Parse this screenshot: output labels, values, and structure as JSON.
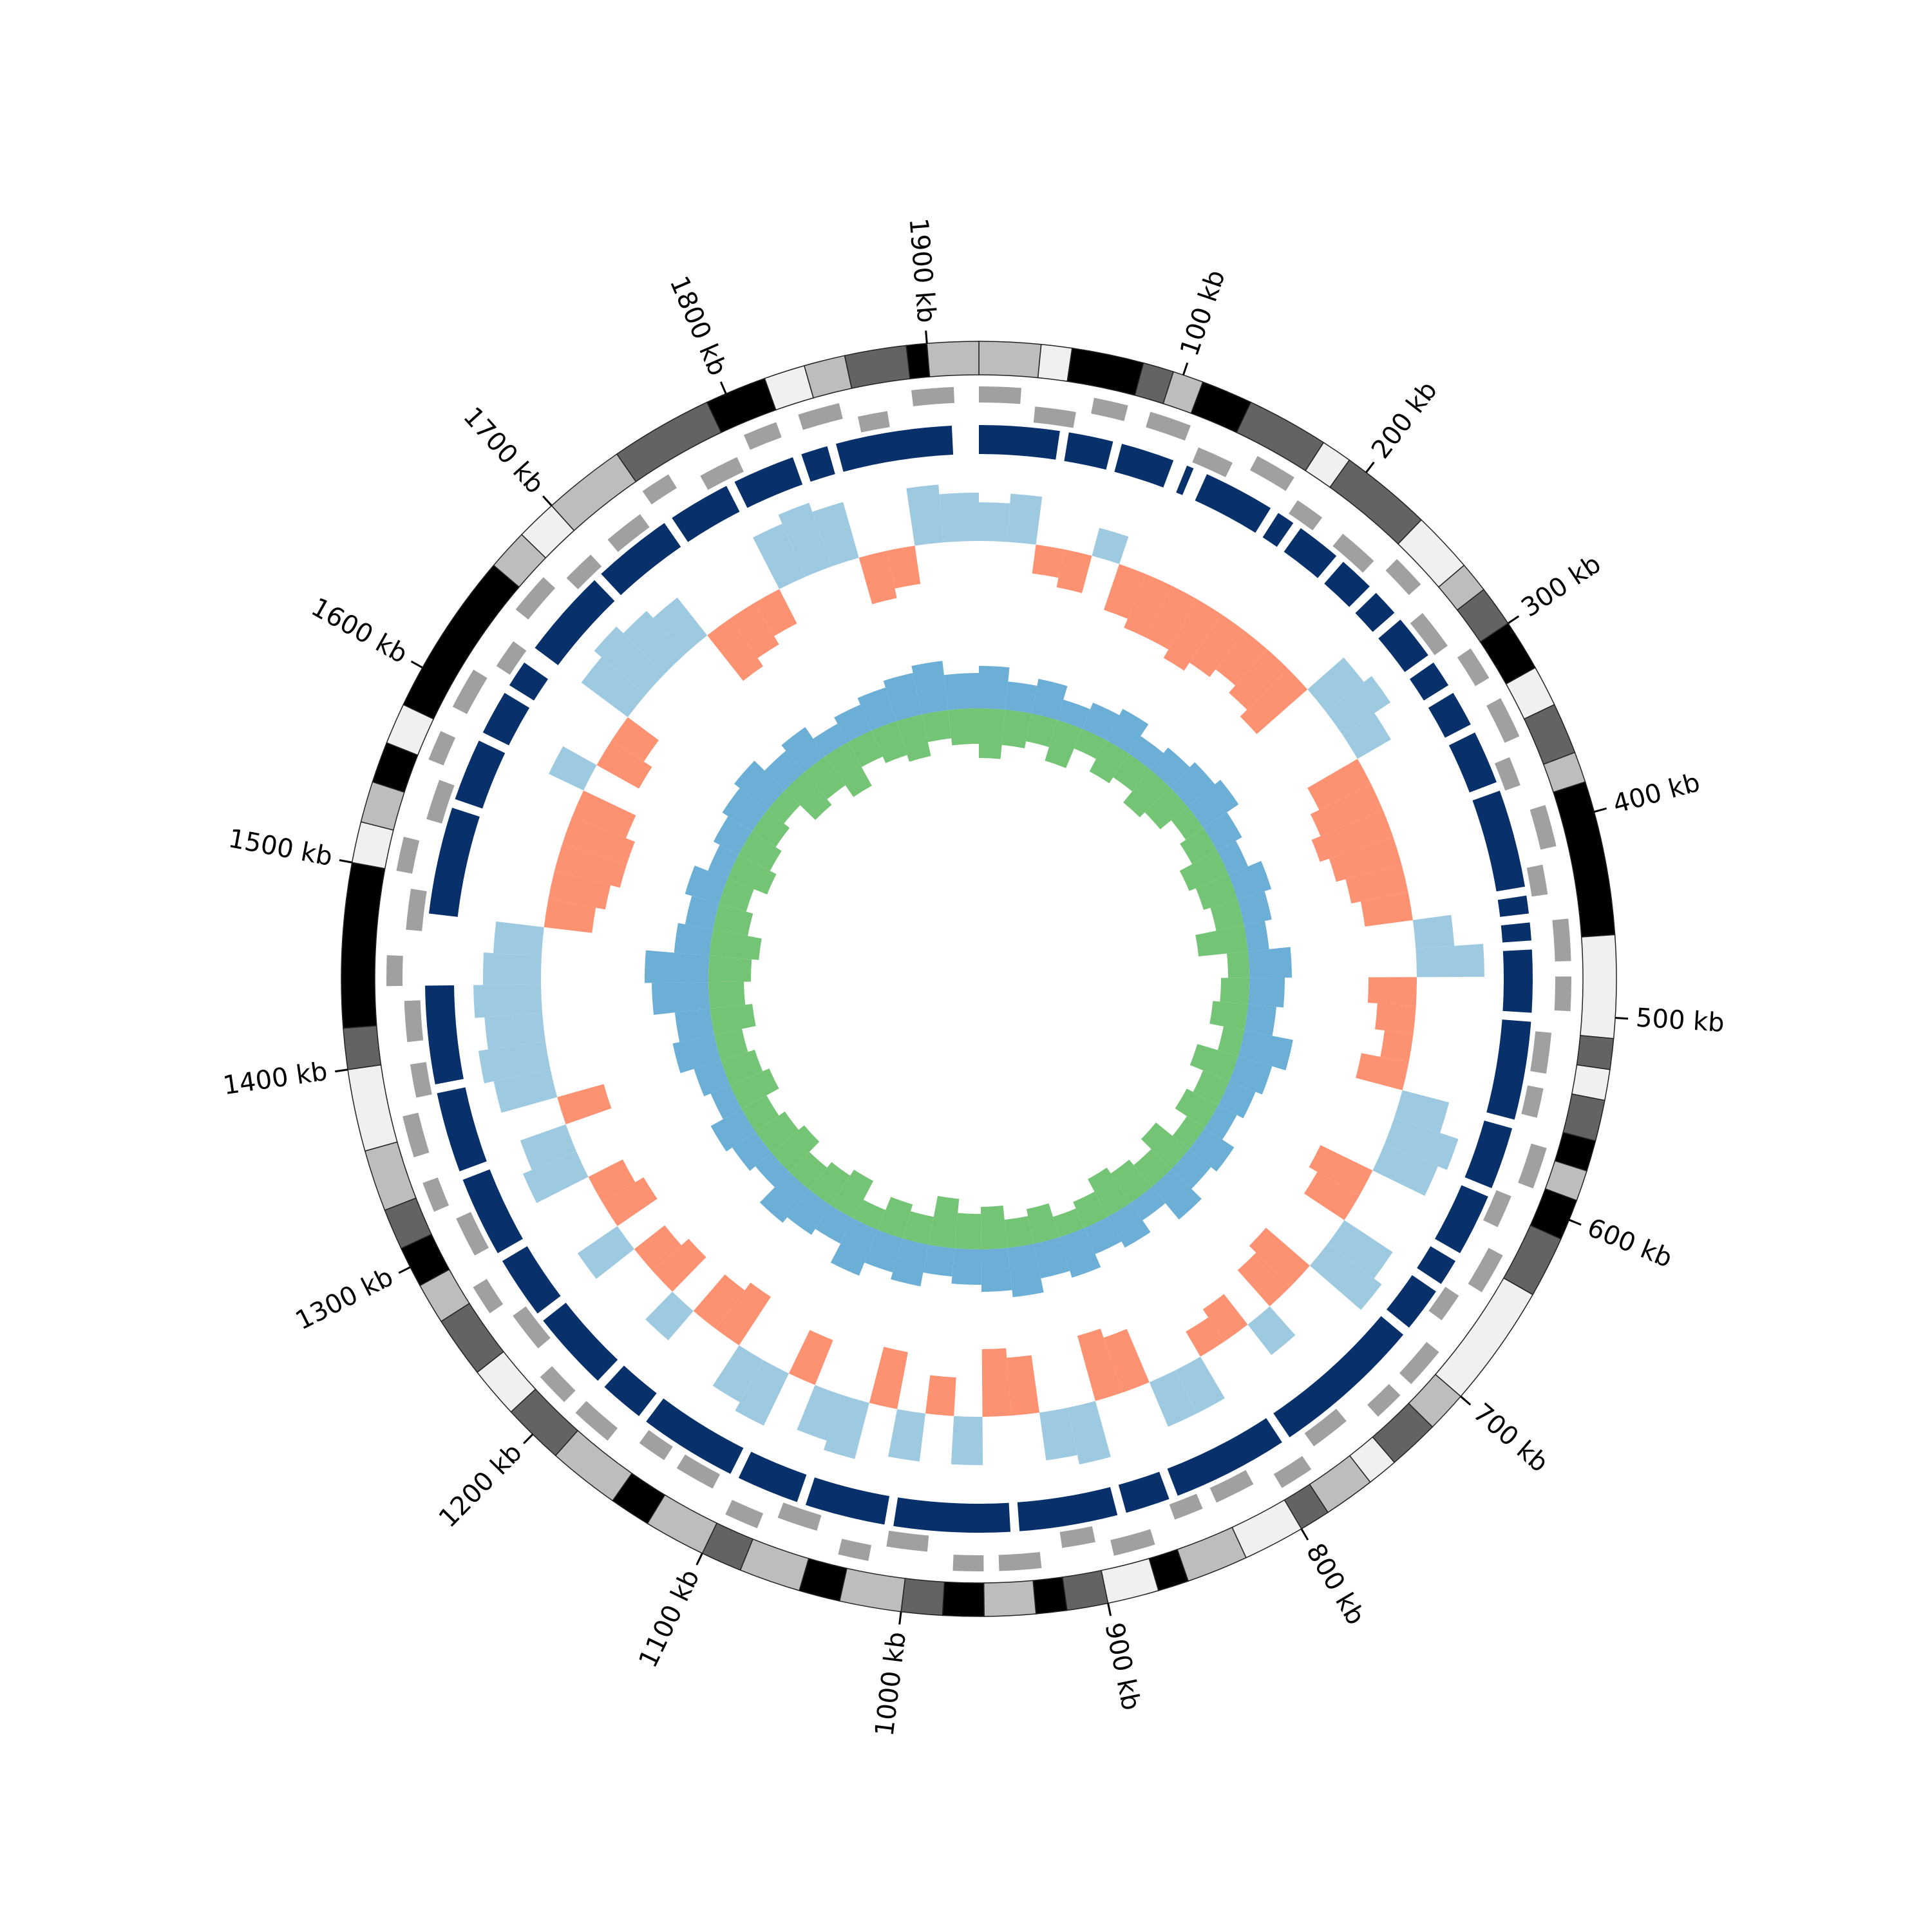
{
  "chart_data": {
    "type": "circos",
    "xlim": [
      0,
      1925
    ],
    "xticks": [
      {
        "value": 100,
        "label": "100 kb"
      },
      {
        "value": 200,
        "label": "200 kb"
      },
      {
        "value": 300,
        "label": "300 kb"
      },
      {
        "value": 400,
        "label": "400 kb"
      },
      {
        "value": 500,
        "label": "500 kb"
      },
      {
        "value": 600,
        "label": "600 kb"
      },
      {
        "value": 700,
        "label": "700 kb"
      },
      {
        "value": 800,
        "label": "800 kb"
      },
      {
        "value": 900,
        "label": "900 kb"
      },
      {
        "value": 1000,
        "label": "1000 kb"
      },
      {
        "value": 1100,
        "label": "1100 kb"
      },
      {
        "value": 1200,
        "label": "1200 kb"
      },
      {
        "value": 1300,
        "label": "1300 kb"
      },
      {
        "value": 1400,
        "label": "1400 kb"
      },
      {
        "value": 1500,
        "label": "1500 kb"
      },
      {
        "value": 1600,
        "label": "1600 kb"
      },
      {
        "value": 1700,
        "label": "1700 kb"
      },
      {
        "value": 1800,
        "label": "1800 kb"
      },
      {
        "value": 1900,
        "label": "1900 kb"
      }
    ],
    "bands": {
      "edges": [
        0,
        30,
        45,
        80,
        95,
        110,
        135,
        175,
        190,
        235,
        265,
        280,
        300,
        325,
        345,
        370,
        385,
        460,
        510,
        525,
        540,
        560,
        575,
        590,
        610,
        640,
        700,
        720,
        745,
        760,
        785,
        800,
        830,
        860,
        875,
        900,
        920,
        935,
        960,
        980,
        1000,
        1030,
        1050,
        1080,
        1100,
        1130,
        1150,
        1185,
        1215,
        1240,
        1270,
        1290,
        1310,
        1330,
        1360,
        1400,
        1420,
        1500,
        1520,
        1540,
        1560,
        1580,
        1660,
        1680,
        1700,
        1740,
        1790,
        1820,
        1840,
        1860,
        1890,
        1900,
        1925
      ],
      "colors": [
        "#bdbdbd",
        "#f0f0f0",
        "#000000",
        "#636363",
        "#bdbdbd",
        "#000000",
        "#636363",
        "#f0f0f0",
        "#636363",
        "#f0f0f0",
        "#bdbdbd",
        "#636363",
        "#000000",
        "#f0f0f0",
        "#636363",
        "#bdbdbd",
        "#000000",
        "#f0f0f0",
        "#636363",
        "#f0f0f0",
        "#636363",
        "#000000",
        "#bdbdbd",
        "#000000",
        "#636363",
        "#f0f0f0",
        "#bdbdbd",
        "#636363",
        "#f0f0f0",
        "#bdbdbd",
        "#636363",
        "#f0f0f0",
        "#bdbdbd",
        "#000000",
        "#f0f0f0",
        "#636363",
        "#000000",
        "#bdbdbd",
        "#000000",
        "#636363",
        "#bdbdbd",
        "#000000",
        "#bdbdbd",
        "#636363",
        "#bdbdbd",
        "#000000",
        "#bdbdbd",
        "#636363",
        "#f0f0f0",
        "#636363",
        "#bdbdbd",
        "#000000",
        "#636363",
        "#bdbdbd",
        "#f0f0f0",
        "#636363",
        "#000000",
        "#f0f0f0",
        "#bdbdbd",
        "#000000",
        "#f0f0f0",
        "#000000",
        "#bdbdbd",
        "#f0f0f0",
        "#bdbdbd",
        "#636363",
        "#000000",
        "#f0f0f0",
        "#bdbdbd",
        "#636363",
        "#000000",
        "#bdbdbd"
      ]
    },
    "genes": {
      "color": "#a0a0a0",
      "starts": [
        0,
        30,
        60,
        90,
        120,
        150,
        180,
        210,
        240,
        270,
        300,
        330,
        360,
        390,
        420,
        450,
        480,
        510,
        540,
        570,
        600,
        630,
        660,
        690,
        720,
        750,
        780,
        810,
        840,
        870,
        900,
        930,
        960,
        990,
        1020,
        1050,
        1080,
        1110,
        1140,
        1170,
        1200,
        1230,
        1260,
        1290,
        1320,
        1350,
        1380,
        1410,
        1440,
        1470,
        1500,
        1530,
        1560,
        1590,
        1620,
        1650,
        1680,
        1710,
        1740,
        1770,
        1800,
        1830,
        1860,
        1890
      ],
      "ends": [
        22,
        52,
        78,
        112,
        140,
        172,
        196,
        232,
        258,
        292,
        318,
        352,
        376,
        412,
        436,
        472,
        498,
        532,
        556,
        592,
        618,
        652,
        676,
        712,
        736,
        772,
        798,
        832,
        856,
        892,
        918,
        952,
        976,
        1012,
        1036,
        1072,
        1098,
        1132,
        1156,
        1192,
        1218,
        1252,
        1276,
        1312,
        1336,
        1372,
        1398,
        1432,
        1456,
        1492,
        1518,
        1552,
        1576,
        1612,
        1636,
        1672,
        1698,
        1732,
        1756,
        1792,
        1818,
        1852,
        1876,
        1912
      ],
      "strands": [
        1,
        -1,
        1,
        1,
        -1,
        1,
        -1,
        -1,
        1,
        -1,
        1,
        1,
        -1,
        1,
        -1,
        1,
        1,
        -1,
        -1,
        1,
        -1,
        1,
        -1,
        1,
        1,
        -1,
        1,
        -1,
        -1,
        1,
        -1,
        1,
        1,
        -1,
        1,
        -1,
        1,
        -1,
        -1,
        1,
        1,
        -1,
        1,
        -1,
        1,
        1,
        -1,
        -1,
        1,
        -1,
        1,
        -1,
        1,
        1,
        -1,
        1,
        -1,
        -1,
        1,
        -1,
        1,
        1,
        -1,
        1
      ]
    },
    "blocks": {
      "color": "#08306b",
      "starts": [
        0,
        50,
        80,
        118,
        130,
        175,
        190,
        220,
        245,
        265,
        295,
        315,
        340,
        375,
        435,
        450,
        465,
        505,
        565,
        605,
        645,
        665,
        695,
        785,
        855,
        885,
        945,
        1015,
        1065,
        1105,
        1165,
        1195,
        1245,
        1285,
        1335,
        1385,
        1480,
        1545,
        1585,
        1615,
        1640,
        1695,
        1745,
        1785,
        1825,
        1845
      ],
      "ends": [
        45,
        75,
        110,
        122,
        170,
        185,
        215,
        240,
        260,
        290,
        310,
        335,
        370,
        430,
        445,
        460,
        500,
        560,
        600,
        640,
        660,
        690,
        780,
        850,
        880,
        940,
        1010,
        1060,
        1100,
        1160,
        1190,
        1240,
        1280,
        1330,
        1380,
        1440,
        1540,
        1580,
        1610,
        1630,
        1690,
        1740,
        1780,
        1820,
        1840,
        1910
      ]
    },
    "skew": {
      "pos_color": "#9ecae1",
      "neg_color": "#fc9272",
      "ylim": [
        -1,
        1
      ],
      "x": [
        0,
        20,
        40,
        60,
        80,
        100,
        120,
        140,
        160,
        180,
        200,
        220,
        240,
        260,
        280,
        300,
        320,
        340,
        360,
        380,
        400,
        420,
        440,
        460,
        480,
        500,
        520,
        540,
        560,
        580,
        600,
        620,
        640,
        660,
        680,
        700,
        720,
        740,
        760,
        780,
        800,
        820,
        840,
        860,
        880,
        900,
        920,
        940,
        960,
        980,
        1000,
        1020,
        1040,
        1060,
        1080,
        1100,
        1120,
        1140,
        1160,
        1180,
        1200,
        1220,
        1240,
        1260,
        1280,
        1300,
        1320,
        1340,
        1360,
        1380,
        1400,
        1420,
        1440,
        1460,
        1480,
        1500,
        1520,
        1540,
        1560,
        1580,
        1600,
        1620,
        1640,
        1660,
        1680,
        1700,
        1720,
        1740,
        1760,
        1780,
        1800,
        1820,
        1840,
        1860,
        1880,
        1900
      ],
      "values": [
        0.4,
        0.5,
        -0.3,
        -0.4,
        0.3,
        -0.5,
        -0.6,
        -0.6,
        -0.7,
        -0.6,
        -0.5,
        -0.6,
        -0.7,
        0.5,
        0.6,
        0.4,
        -0.6,
        -0.7,
        -0.8,
        -0.7,
        -0.6,
        -0.5,
        0.4,
        0.7,
        -0.5,
        -0.4,
        -0.3,
        -0.5,
        0.5,
        0.7,
        0.6,
        -0.6,
        -0.5,
        0.6,
        0.7,
        -0.6,
        -0.5,
        0.4,
        -0.4,
        -0.3,
        0.5,
        0.5,
        -0.6,
        -0.7,
        0.6,
        0.5,
        -0.6,
        -0.7,
        0.5,
        -0.4,
        0.5,
        -0.6,
        0.6,
        0.5,
        -0.5,
        0.6,
        0.5,
        -0.6,
        -0.5,
        0.4,
        -0.5,
        -0.4,
        0.5,
        -0.5,
        -0.4,
        0.6,
        0.5,
        -0.5,
        0.6,
        0.7,
        0.6,
        0.7,
        0.6,
        0.5,
        -0.5,
        -0.6,
        -0.7,
        -0.7,
        -0.6,
        0.4,
        -0.5,
        -0.4,
        0.6,
        0.7,
        0.6,
        0.5,
        -0.6,
        -0.5,
        -0.4,
        0.6,
        0.7,
        0.6,
        -0.5,
        -0.4,
        0.6,
        0.5
      ]
    },
    "inner": {
      "ylim": [
        -1,
        1
      ],
      "x": [
        0,
        30,
        60,
        90,
        120,
        150,
        180,
        210,
        240,
        270,
        300,
        330,
        360,
        390,
        420,
        450,
        480,
        510,
        540,
        570,
        600,
        630,
        660,
        690,
        720,
        750,
        780,
        810,
        840,
        870,
        900,
        930,
        960,
        990,
        1020,
        1050,
        1080,
        1110,
        1140,
        1170,
        1200,
        1230,
        1260,
        1290,
        1320,
        1350,
        1380,
        1410,
        1440,
        1470,
        1500,
        1530,
        1560,
        1590,
        1620,
        1650,
        1680,
        1710,
        1740,
        1770,
        1800,
        1830,
        1860,
        1890
      ],
      "series": [
        {
          "name": "blue",
          "color": "#6baed6",
          "values": [
            0.6,
            0.4,
            0.5,
            0.3,
            0.4,
            0.5,
            0.3,
            0.4,
            0.5,
            0.6,
            0.4,
            0.3,
            0.5,
            0.4,
            0.3,
            0.6,
            0.5,
            0.4,
            0.7,
            0.5,
            0.4,
            0.3,
            0.5,
            0.4,
            0.6,
            0.3,
            0.5,
            0.4,
            0.6,
            0.5,
            0.7,
            0.6,
            0.5,
            0.4,
            0.6,
            0.5,
            0.7,
            0.4,
            0.5,
            0.6,
            0.3,
            0.4,
            0.5,
            0.3,
            0.4,
            0.6,
            0.5,
            0.8,
            0.9,
            0.5,
            0.4,
            0.5,
            0.3,
            0.4,
            0.5,
            0.6,
            0.4,
            0.5,
            0.3,
            0.4,
            0.5,
            0.6,
            0.7,
            0.5
          ]
        },
        {
          "name": "green",
          "color": "#74c476",
          "values": [
            -0.7,
            -0.5,
            -0.4,
            -0.6,
            -0.3,
            -0.5,
            -0.4,
            -0.6,
            -0.5,
            -0.3,
            -0.4,
            -0.6,
            -0.5,
            -0.4,
            -0.7,
            -0.3,
            -0.4,
            -0.5,
            -0.3,
            -0.6,
            -0.4,
            -0.5,
            -0.3,
            -0.6,
            -0.4,
            -0.5,
            -0.6,
            -0.4,
            -0.3,
            -0.5,
            -0.4,
            -0.6,
            -0.5,
            -0.7,
            -0.4,
            -0.5,
            -0.3,
            -0.6,
            -0.5,
            -0.4,
            -0.6,
            -0.5,
            -0.4,
            -0.6,
            -0.5,
            -0.4,
            -0.6,
            -0.5,
            -0.6,
            -0.7,
            -0.5,
            -0.4,
            -0.6,
            -0.5,
            -0.4,
            -0.3,
            -0.6,
            -0.5,
            -0.7,
            -0.4,
            -0.5,
            -0.6,
            -0.4,
            -0.5
          ]
        }
      ]
    }
  }
}
